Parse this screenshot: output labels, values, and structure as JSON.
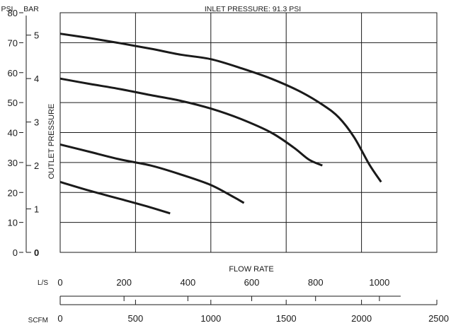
{
  "chart_data": {
    "type": "line",
    "title": "INLET PRESSURE: 91.3 PSI",
    "xlabel": "FLOW RATE",
    "ylabel": "OUTLET PRESSURE",
    "psi_label": "PSI",
    "bar_label": "BAR",
    "ls_label": "L/S",
    "scfm_label": "SCFM",
    "x_unit": "SCFM",
    "xlim": [
      0,
      2500
    ],
    "ylim": [
      0,
      80
    ],
    "grid": true,
    "scfm_ticks": [
      "0",
      "500",
      "1000",
      "1500",
      "2000",
      "2500"
    ],
    "ls_ticks": [
      "0",
      "200",
      "400",
      "600",
      "800",
      "1000"
    ],
    "psi_ticks": [
      "0",
      "10",
      "20",
      "30",
      "40",
      "50",
      "60",
      "70",
      "80"
    ],
    "bar_ticks": [
      "0",
      "1",
      "2",
      "3",
      "4",
      "5"
    ],
    "series": [
      {
        "values": [
          [
            0,
            73
          ],
          [
            200,
            71.5
          ],
          [
            400,
            69.8
          ],
          [
            600,
            68
          ],
          [
            800,
            66
          ],
          [
            1000,
            64.5
          ],
          [
            1200,
            61.5
          ],
          [
            1400,
            58
          ],
          [
            1600,
            53.5
          ],
          [
            1750,
            49
          ],
          [
            1850,
            45
          ],
          [
            1950,
            38.5
          ],
          [
            2050,
            29.5
          ],
          [
            2130,
            23.5
          ]
        ]
      },
      {
        "values": [
          [
            0,
            58
          ],
          [
            200,
            56.2
          ],
          [
            400,
            54.5
          ],
          [
            600,
            52.5
          ],
          [
            800,
            50.6
          ],
          [
            1000,
            48
          ],
          [
            1200,
            44.5
          ],
          [
            1400,
            40
          ],
          [
            1550,
            35
          ],
          [
            1650,
            31
          ],
          [
            1740,
            29
          ]
        ]
      },
      {
        "values": [
          [
            0,
            36
          ],
          [
            200,
            33.5
          ],
          [
            400,
            31
          ],
          [
            600,
            29
          ],
          [
            800,
            26
          ],
          [
            1000,
            22.5
          ],
          [
            1150,
            18.5
          ],
          [
            1220,
            16.5
          ]
        ]
      },
      {
        "values": [
          [
            0,
            23.5
          ],
          [
            200,
            20.5
          ],
          [
            400,
            17.8
          ],
          [
            600,
            15
          ],
          [
            730,
            13
          ]
        ]
      }
    ]
  }
}
